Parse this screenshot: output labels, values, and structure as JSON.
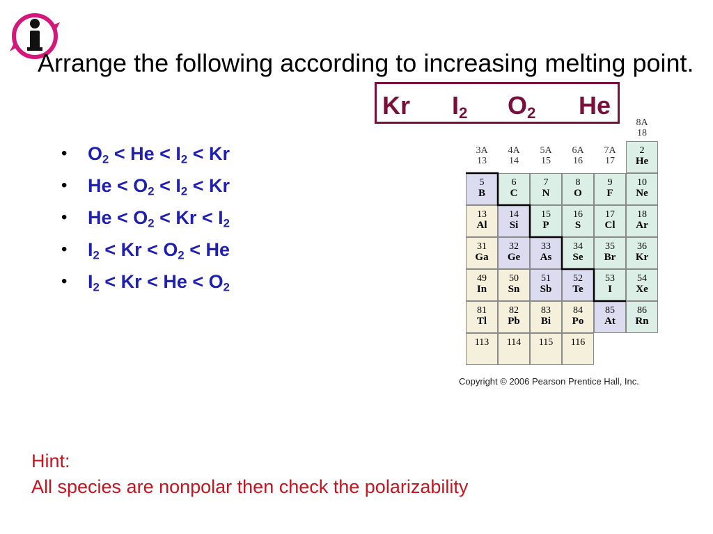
{
  "slide": {
    "title": "Arrange the following according to increasing melting point."
  },
  "species": [
    {
      "base": "Kr",
      "sub": ""
    },
    {
      "base": "I",
      "sub": "2"
    },
    {
      "base": "O",
      "sub": "2"
    },
    {
      "base": "He",
      "sub": ""
    }
  ],
  "options": [
    [
      {
        "t": "O",
        "s": "2"
      },
      {
        "t": " < He < I",
        "s": "2"
      },
      {
        "t": " < Kr",
        "s": ""
      }
    ],
    [
      {
        "t": "He < O",
        "s": "2"
      },
      {
        "t": " < I",
        "s": "2"
      },
      {
        "t": " < Kr",
        "s": ""
      }
    ],
    [
      {
        "t": "He < O",
        "s": "2"
      },
      {
        "t": " < Kr < I",
        "s": "2"
      }
    ],
    [
      {
        "t": "I",
        "s": "2"
      },
      {
        "t": " < Kr < O",
        "s": "2"
      },
      {
        "t": " < He",
        "s": ""
      }
    ],
    [
      {
        "t": "I",
        "s": "2"
      },
      {
        "t": " < Kr < He < O",
        "s": "2"
      }
    ]
  ],
  "bullet_char": "•",
  "periodic_table": {
    "group_labels": [
      {
        "a": "3A",
        "n": "13"
      },
      {
        "a": "4A",
        "n": "14"
      },
      {
        "a": "5A",
        "n": "15"
      },
      {
        "a": "6A",
        "n": "16"
      },
      {
        "a": "7A",
        "n": "17"
      },
      {
        "a": "8A",
        "n": "18"
      }
    ],
    "rows": [
      [
        null,
        null,
        null,
        null,
        null,
        {
          "num": "2",
          "sym": "He",
          "type": "nonmetal"
        }
      ],
      [
        {
          "num": "5",
          "sym": "B",
          "type": "metalloid"
        },
        {
          "num": "6",
          "sym": "C",
          "type": "nonmetal"
        },
        {
          "num": "7",
          "sym": "N",
          "type": "nonmetal"
        },
        {
          "num": "8",
          "sym": "O",
          "type": "nonmetal"
        },
        {
          "num": "9",
          "sym": "F",
          "type": "nonmetal"
        },
        {
          "num": "10",
          "sym": "Ne",
          "type": "nonmetal"
        }
      ],
      [
        {
          "num": "13",
          "sym": "Al",
          "type": "metal"
        },
        {
          "num": "14",
          "sym": "Si",
          "type": "metalloid"
        },
        {
          "num": "15",
          "sym": "P",
          "type": "nonmetal"
        },
        {
          "num": "16",
          "sym": "S",
          "type": "nonmetal"
        },
        {
          "num": "17",
          "sym": "Cl",
          "type": "nonmetal"
        },
        {
          "num": "18",
          "sym": "Ar",
          "type": "nonmetal"
        }
      ],
      [
        {
          "num": "31",
          "sym": "Ga",
          "type": "metal"
        },
        {
          "num": "32",
          "sym": "Ge",
          "type": "metalloid"
        },
        {
          "num": "33",
          "sym": "As",
          "type": "metalloid"
        },
        {
          "num": "34",
          "sym": "Se",
          "type": "nonmetal"
        },
        {
          "num": "35",
          "sym": "Br",
          "type": "nonmetal"
        },
        {
          "num": "36",
          "sym": "Kr",
          "type": "nonmetal"
        }
      ],
      [
        {
          "num": "49",
          "sym": "In",
          "type": "metal"
        },
        {
          "num": "50",
          "sym": "Sn",
          "type": "metal"
        },
        {
          "num": "51",
          "sym": "Sb",
          "type": "metalloid"
        },
        {
          "num": "52",
          "sym": "Te",
          "type": "metalloid"
        },
        {
          "num": "53",
          "sym": "I",
          "type": "nonmetal"
        },
        {
          "num": "54",
          "sym": "Xe",
          "type": "nonmetal"
        }
      ],
      [
        {
          "num": "81",
          "sym": "Tl",
          "type": "metal"
        },
        {
          "num": "82",
          "sym": "Pb",
          "type": "metal"
        },
        {
          "num": "83",
          "sym": "Bi",
          "type": "metal"
        },
        {
          "num": "84",
          "sym": "Po",
          "type": "metal"
        },
        {
          "num": "85",
          "sym": "At",
          "type": "metalloid"
        },
        {
          "num": "86",
          "sym": "Rn",
          "type": "nonmetal"
        }
      ],
      [
        {
          "num": "113",
          "sym": "",
          "type": "metal"
        },
        {
          "num": "114",
          "sym": "",
          "type": "metal"
        },
        {
          "num": "115",
          "sym": "",
          "type": "metal"
        },
        {
          "num": "116",
          "sym": "",
          "type": "metal"
        },
        null,
        null
      ]
    ],
    "copyright": "Copyright © 2006 Pearson Prentice Hall, Inc."
  },
  "hint": {
    "label": "Hint:",
    "text": "All species are nonpolar then check the polarizability"
  },
  "colors": {
    "title": "#000000",
    "species_box": "#7a0f3c",
    "options": "#1f1fb2",
    "hint": "#c8141e",
    "logo": "#d6177a"
  },
  "icons": {
    "logo": "info-logo-icon"
  }
}
